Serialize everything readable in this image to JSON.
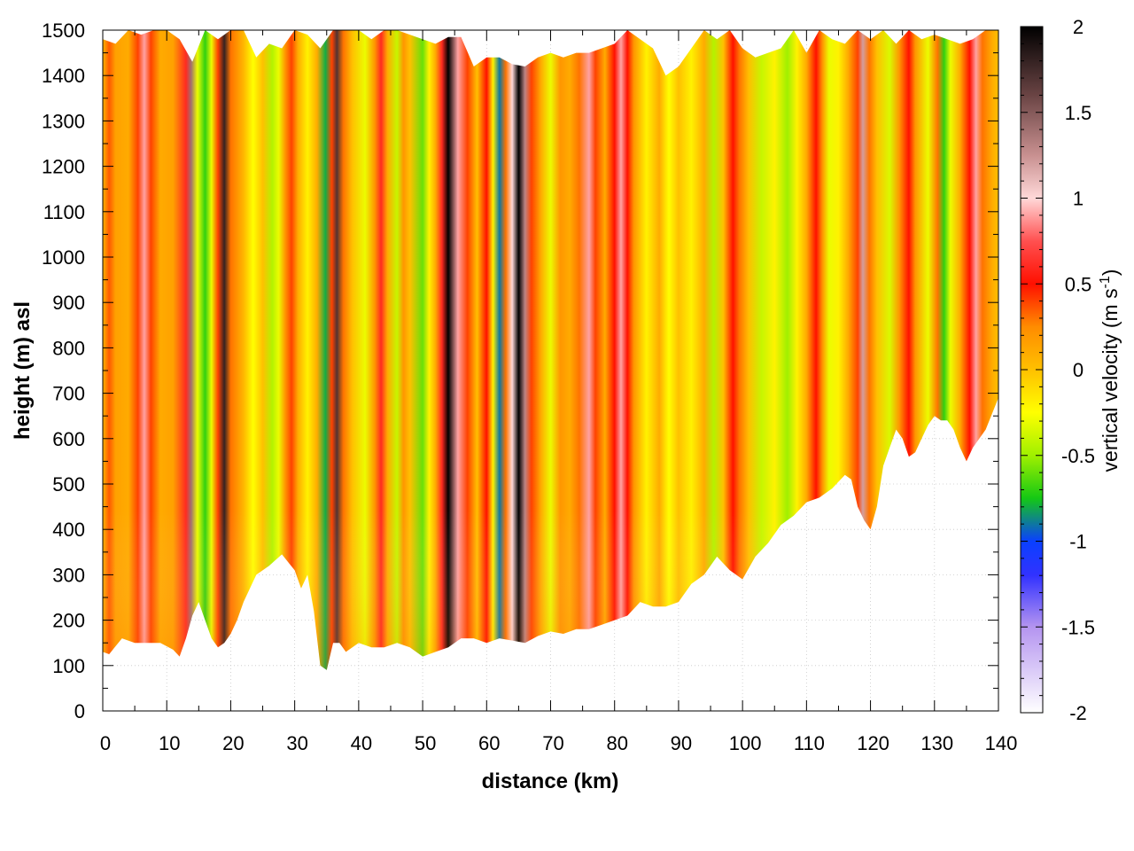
{
  "chart_data": {
    "type": "heatmap",
    "title": "",
    "xlabel": "distance (km)",
    "ylabel": "height (m) asl",
    "xlim": [
      0,
      140
    ],
    "ylim": [
      0,
      1500
    ],
    "x_ticks": [
      "0",
      "10",
      "20",
      "30",
      "40",
      "50",
      "60",
      "70",
      "80",
      "90",
      "100",
      "110",
      "120",
      "130",
      "140"
    ],
    "y_ticks": [
      "0",
      "100",
      "200",
      "300",
      "400",
      "500",
      "600",
      "700",
      "800",
      "900",
      "1000",
      "1100",
      "1200",
      "1300",
      "1400",
      "1500"
    ],
    "grid": true,
    "colorbar": {
      "label": "vertical velocity (m s",
      "label_sup": "-1",
      "label_end": ")",
      "range": [
        -2,
        2
      ],
      "ticks": [
        "2",
        "1.5",
        "1",
        "0.5",
        "0",
        "-0.5",
        "-1",
        "-1.5",
        "-2"
      ],
      "tick_values": [
        2,
        1.5,
        1,
        0.5,
        0,
        -0.5,
        -1,
        -1.5,
        -2
      ],
      "stops": [
        {
          "v": -2.0,
          "color": "#ffffff"
        },
        {
          "v": -1.5,
          "color": "#b494f0"
        },
        {
          "v": -1.2,
          "color": "#3232ff"
        },
        {
          "v": -1.0,
          "color": "#0a40ff"
        },
        {
          "v": -0.75,
          "color": "#14c814"
        },
        {
          "v": -0.5,
          "color": "#a0f000"
        },
        {
          "v": -0.25,
          "color": "#ffff00"
        },
        {
          "v": 0.0,
          "color": "#ffc000"
        },
        {
          "v": 0.25,
          "color": "#ff8c00"
        },
        {
          "v": 0.5,
          "color": "#ff1000"
        },
        {
          "v": 0.75,
          "color": "#ff5050"
        },
        {
          "v": 1.0,
          "color": "#ffd8d8"
        },
        {
          "v": 1.25,
          "color": "#c89090"
        },
        {
          "v": 1.6,
          "color": "#6a4444"
        },
        {
          "v": 2.0,
          "color": "#000000"
        }
      ]
    },
    "terrain_km": [
      0,
      1,
      3,
      5,
      7,
      9,
      11,
      12,
      13,
      14,
      15,
      16,
      17,
      18,
      19,
      20,
      21,
      22,
      24,
      26,
      28,
      30,
      31,
      32,
      33,
      34,
      35,
      36,
      37,
      38,
      40,
      42,
      44,
      46,
      48,
      50,
      52,
      54,
      56,
      58,
      60,
      62,
      64,
      66,
      68,
      70,
      72,
      74,
      76,
      78,
      80,
      82,
      84,
      86,
      88,
      90,
      92,
      94,
      96,
      98,
      100,
      102,
      104,
      106,
      108,
      110,
      112,
      114,
      116,
      117,
      118,
      119,
      120,
      121,
      122,
      123,
      124,
      125,
      126,
      127,
      128,
      129,
      130,
      131,
      132,
      133,
      134,
      135,
      136,
      138,
      140
    ],
    "terrain_m": [
      130,
      125,
      160,
      150,
      150,
      150,
      135,
      120,
      160,
      210,
      240,
      200,
      160,
      140,
      150,
      170,
      200,
      240,
      300,
      320,
      345,
      310,
      270,
      300,
      220,
      100,
      90,
      150,
      150,
      130,
      150,
      140,
      140,
      150,
      140,
      120,
      130,
      140,
      160,
      160,
      150,
      160,
      155,
      150,
      165,
      175,
      170,
      180,
      180,
      190,
      200,
      210,
      240,
      230,
      230,
      240,
      280,
      300,
      340,
      310,
      290,
      340,
      370,
      410,
      430,
      460,
      470,
      490,
      520,
      510,
      450,
      420,
      400,
      450,
      540,
      580,
      620,
      600,
      560,
      570,
      600,
      630,
      650,
      640,
      640,
      620,
      580,
      550,
      580,
      620,
      690
    ],
    "columns": [
      [
        0.0,
        0.05
      ],
      [
        1.0,
        0.35
      ],
      [
        2.0,
        0.15
      ],
      [
        4.0,
        0.1
      ],
      [
        5.5,
        0.4
      ],
      [
        6.5,
        0.9
      ],
      [
        7.5,
        0.4
      ],
      [
        9.0,
        0.1
      ],
      [
        11.0,
        0.15
      ],
      [
        13.0,
        0.6
      ],
      [
        13.8,
        1.4
      ],
      [
        14.8,
        -0.3
      ],
      [
        16.0,
        -0.7
      ],
      [
        17.0,
        -0.3
      ],
      [
        18.0,
        0.4
      ],
      [
        19.0,
        1.8
      ],
      [
        20.0,
        0.3
      ],
      [
        22.0,
        0.05
      ],
      [
        23.5,
        -0.25
      ],
      [
        25.0,
        0.0
      ],
      [
        26.5,
        -0.45
      ],
      [
        27.5,
        -0.3
      ],
      [
        28.5,
        0.2
      ],
      [
        29.5,
        0.4
      ],
      [
        30.5,
        0.1
      ],
      [
        32.0,
        -0.2
      ],
      [
        33.5,
        0.1
      ],
      [
        34.8,
        -0.8
      ],
      [
        35.8,
        0.4
      ],
      [
        36.6,
        1.7
      ],
      [
        37.6,
        0.3
      ],
      [
        39.0,
        0.0
      ],
      [
        41.0,
        -0.3
      ],
      [
        42.5,
        0.2
      ],
      [
        43.5,
        0.6
      ],
      [
        44.5,
        0.1
      ],
      [
        46.0,
        -0.4
      ],
      [
        47.0,
        0.2
      ],
      [
        48.0,
        0.0
      ],
      [
        50.0,
        -0.6
      ],
      [
        51.0,
        -0.2
      ],
      [
        52.0,
        0.1
      ],
      [
        53.0,
        0.6
      ],
      [
        54.0,
        2.0
      ],
      [
        55.5,
        0.9
      ],
      [
        57.0,
        0.4
      ],
      [
        58.5,
        0.0
      ],
      [
        60.0,
        0.5
      ],
      [
        61.0,
        -0.2
      ],
      [
        62.0,
        -0.9
      ],
      [
        63.0,
        0.3
      ],
      [
        64.0,
        1.0
      ],
      [
        65.0,
        2.0
      ],
      [
        66.0,
        1.3
      ],
      [
        67.0,
        0.4
      ],
      [
        68.5,
        0.1
      ],
      [
        70.0,
        -0.3
      ],
      [
        71.5,
        0.2
      ],
      [
        73.0,
        0.1
      ],
      [
        74.5,
        0.3
      ],
      [
        76.0,
        0.9
      ],
      [
        77.0,
        0.4
      ],
      [
        78.5,
        0.1
      ],
      [
        80.0,
        0.5
      ],
      [
        81.0,
        0.9
      ],
      [
        82.0,
        0.5
      ],
      [
        83.0,
        0.2
      ],
      [
        85.0,
        -0.2
      ],
      [
        87.0,
        0.1
      ],
      [
        88.5,
        -0.25
      ],
      [
        90.0,
        0.0
      ],
      [
        92.0,
        -0.2
      ],
      [
        94.0,
        0.1
      ],
      [
        95.5,
        -0.45
      ],
      [
        97.0,
        0.0
      ],
      [
        98.5,
        0.5
      ],
      [
        99.5,
        0.3
      ],
      [
        101.0,
        0.0
      ],
      [
        103.0,
        -0.4
      ],
      [
        105.0,
        -0.2
      ],
      [
        107.0,
        -0.5
      ],
      [
        108.5,
        -0.2
      ],
      [
        110.0,
        0.1
      ],
      [
        111.5,
        0.5
      ],
      [
        112.5,
        0.2
      ],
      [
        113.5,
        -0.3
      ],
      [
        115.0,
        -0.2
      ],
      [
        116.5,
        0.1
      ],
      [
        118.0,
        0.4
      ],
      [
        118.8,
        1.2
      ],
      [
        119.8,
        0.3
      ],
      [
        121.0,
        0.0
      ],
      [
        123.0,
        -0.35
      ],
      [
        124.5,
        0.2
      ],
      [
        126.0,
        0.5
      ],
      [
        127.0,
        0.2
      ],
      [
        129.0,
        -0.3
      ],
      [
        130.5,
        0.3
      ],
      [
        131.5,
        -0.7
      ],
      [
        132.5,
        -0.3
      ],
      [
        134.0,
        0.1
      ],
      [
        135.5,
        0.5
      ],
      [
        136.5,
        0.9
      ],
      [
        137.5,
        0.3
      ],
      [
        139.0,
        0.1
      ],
      [
        140.0,
        0.0
      ]
    ],
    "cloud_top_km": [
      0,
      2,
      4,
      6,
      8,
      10,
      12,
      14,
      16,
      18,
      20,
      22,
      24,
      26,
      28,
      30,
      32,
      34,
      36,
      38,
      40,
      42,
      44,
      46,
      48,
      50,
      52,
      54,
      56,
      58,
      60,
      62,
      64,
      66,
      68,
      70,
      72,
      74,
      76,
      78,
      80,
      82,
      84,
      86,
      88,
      90,
      92,
      94,
      96,
      98,
      100,
      102,
      104,
      106,
      108,
      110,
      112,
      114,
      116,
      118,
      120,
      122,
      124,
      126,
      128,
      130,
      132,
      134,
      136,
      138,
      140
    ],
    "cloud_top_m": [
      1480,
      1470,
      1500,
      1490,
      1500,
      1500,
      1480,
      1430,
      1500,
      1480,
      1500,
      1500,
      1440,
      1470,
      1460,
      1500,
      1490,
      1460,
      1500,
      1500,
      1500,
      1480,
      1500,
      1500,
      1490,
      1480,
      1470,
      1485,
      1485,
      1420,
      1440,
      1440,
      1425,
      1420,
      1440,
      1450,
      1440,
      1450,
      1450,
      1460,
      1470,
      1500,
      1480,
      1460,
      1400,
      1420,
      1460,
      1500,
      1480,
      1500,
      1460,
      1440,
      1450,
      1460,
      1500,
      1450,
      1500,
      1480,
      1470,
      1500,
      1480,
      1500,
      1470,
      1500,
      1480,
      1490,
      1480,
      1470,
      1480,
      1500,
      1500
    ],
    "series": []
  }
}
